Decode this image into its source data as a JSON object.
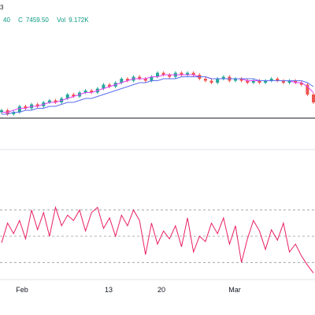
{
  "legend": {
    "title_fragment": "3",
    "values": [
      {
        "label": "",
        "value": "40"
      },
      {
        "label": "C",
        "value": "7459.50"
      },
      {
        "label": "Vol",
        "value": "9.172K"
      }
    ]
  },
  "colors": {
    "up": "#26a69a",
    "down": "#ef5350",
    "ma_fast": "#e040fb",
    "ma_slow": "#5b6cf0",
    "rsi": "#e91e63",
    "baseline": "#131722",
    "band": "#9598a1"
  },
  "chart_data": [
    {
      "type": "candlestick",
      "x_ticks": [
        "Feb",
        "13",
        "20",
        "Mar"
      ],
      "series": [
        {
          "name": "candles",
          "values": [
            7442,
            7440,
            7441,
            7444,
            7443,
            7445,
            7444,
            7446,
            7447,
            7446,
            7448,
            7450,
            7449,
            7451,
            7452,
            7451,
            7453,
            7455,
            7454,
            7456,
            7458,
            7457,
            7459,
            7458,
            7457,
            7459,
            7461,
            7460,
            7459,
            7461,
            7460,
            7461,
            7460,
            7458,
            7457,
            7456,
            7458,
            7459,
            7457,
            7458,
            7457,
            7456,
            7457,
            7456,
            7457,
            7458,
            7457,
            7456,
            7457,
            7456,
            7455,
            7450,
            7446
          ]
        },
        {
          "name": "ma_fast",
          "values": [
            7441,
            7441,
            7442,
            7443,
            7443,
            7444,
            7444,
            7445,
            7446,
            7446,
            7447,
            7448,
            7449,
            7450,
            7451,
            7451,
            7452,
            7453,
            7454,
            7455,
            7456,
            7457,
            7458,
            7458,
            7458,
            7459,
            7459,
            7460,
            7460,
            7460,
            7460,
            7460,
            7460,
            7459,
            7459,
            7458,
            7458,
            7458,
            7458,
            7458,
            7458,
            7457,
            7457,
            7457,
            7457,
            7457,
            7457,
            7457,
            7457,
            7456,
            7456,
            7454,
            7451
          ]
        },
        {
          "name": "ma_slow",
          "values": [
            7440,
            7440,
            7441,
            7441,
            7442,
            7442,
            7443,
            7443,
            7444,
            7444,
            7445,
            7446,
            7446,
            7447,
            7448,
            7448,
            7449,
            7450,
            7451,
            7452,
            7453,
            7454,
            7455,
            7456,
            7456,
            7457,
            7457,
            7458,
            7458,
            7458,
            7459,
            7459,
            7459,
            7459,
            7459,
            7458,
            7458,
            7458,
            7458,
            7458,
            7458,
            7458,
            7458,
            7457,
            7457,
            7457,
            7457,
            7457,
            7457,
            7457,
            7457,
            7456,
            7454
          ]
        }
      ]
    },
    {
      "type": "line",
      "x_ticks": [
        "Feb",
        "13",
        "20",
        "Mar"
      ],
      "bands": [
        70,
        50,
        30
      ],
      "ylim": [
        20,
        80
      ],
      "series": [
        {
          "name": "rsi",
          "values": [
            45,
            60,
            52,
            62,
            48,
            70,
            55,
            68,
            50,
            72,
            58,
            66,
            62,
            70,
            54,
            68,
            72,
            56,
            64,
            50,
            66,
            58,
            70,
            62,
            36,
            60,
            44,
            54,
            48,
            58,
            42,
            64,
            38,
            50,
            46,
            60,
            52,
            64,
            44,
            58,
            30,
            48,
            62,
            54,
            40,
            55,
            47,
            60,
            38,
            44,
            35,
            28,
            22
          ]
        }
      ]
    }
  ]
}
